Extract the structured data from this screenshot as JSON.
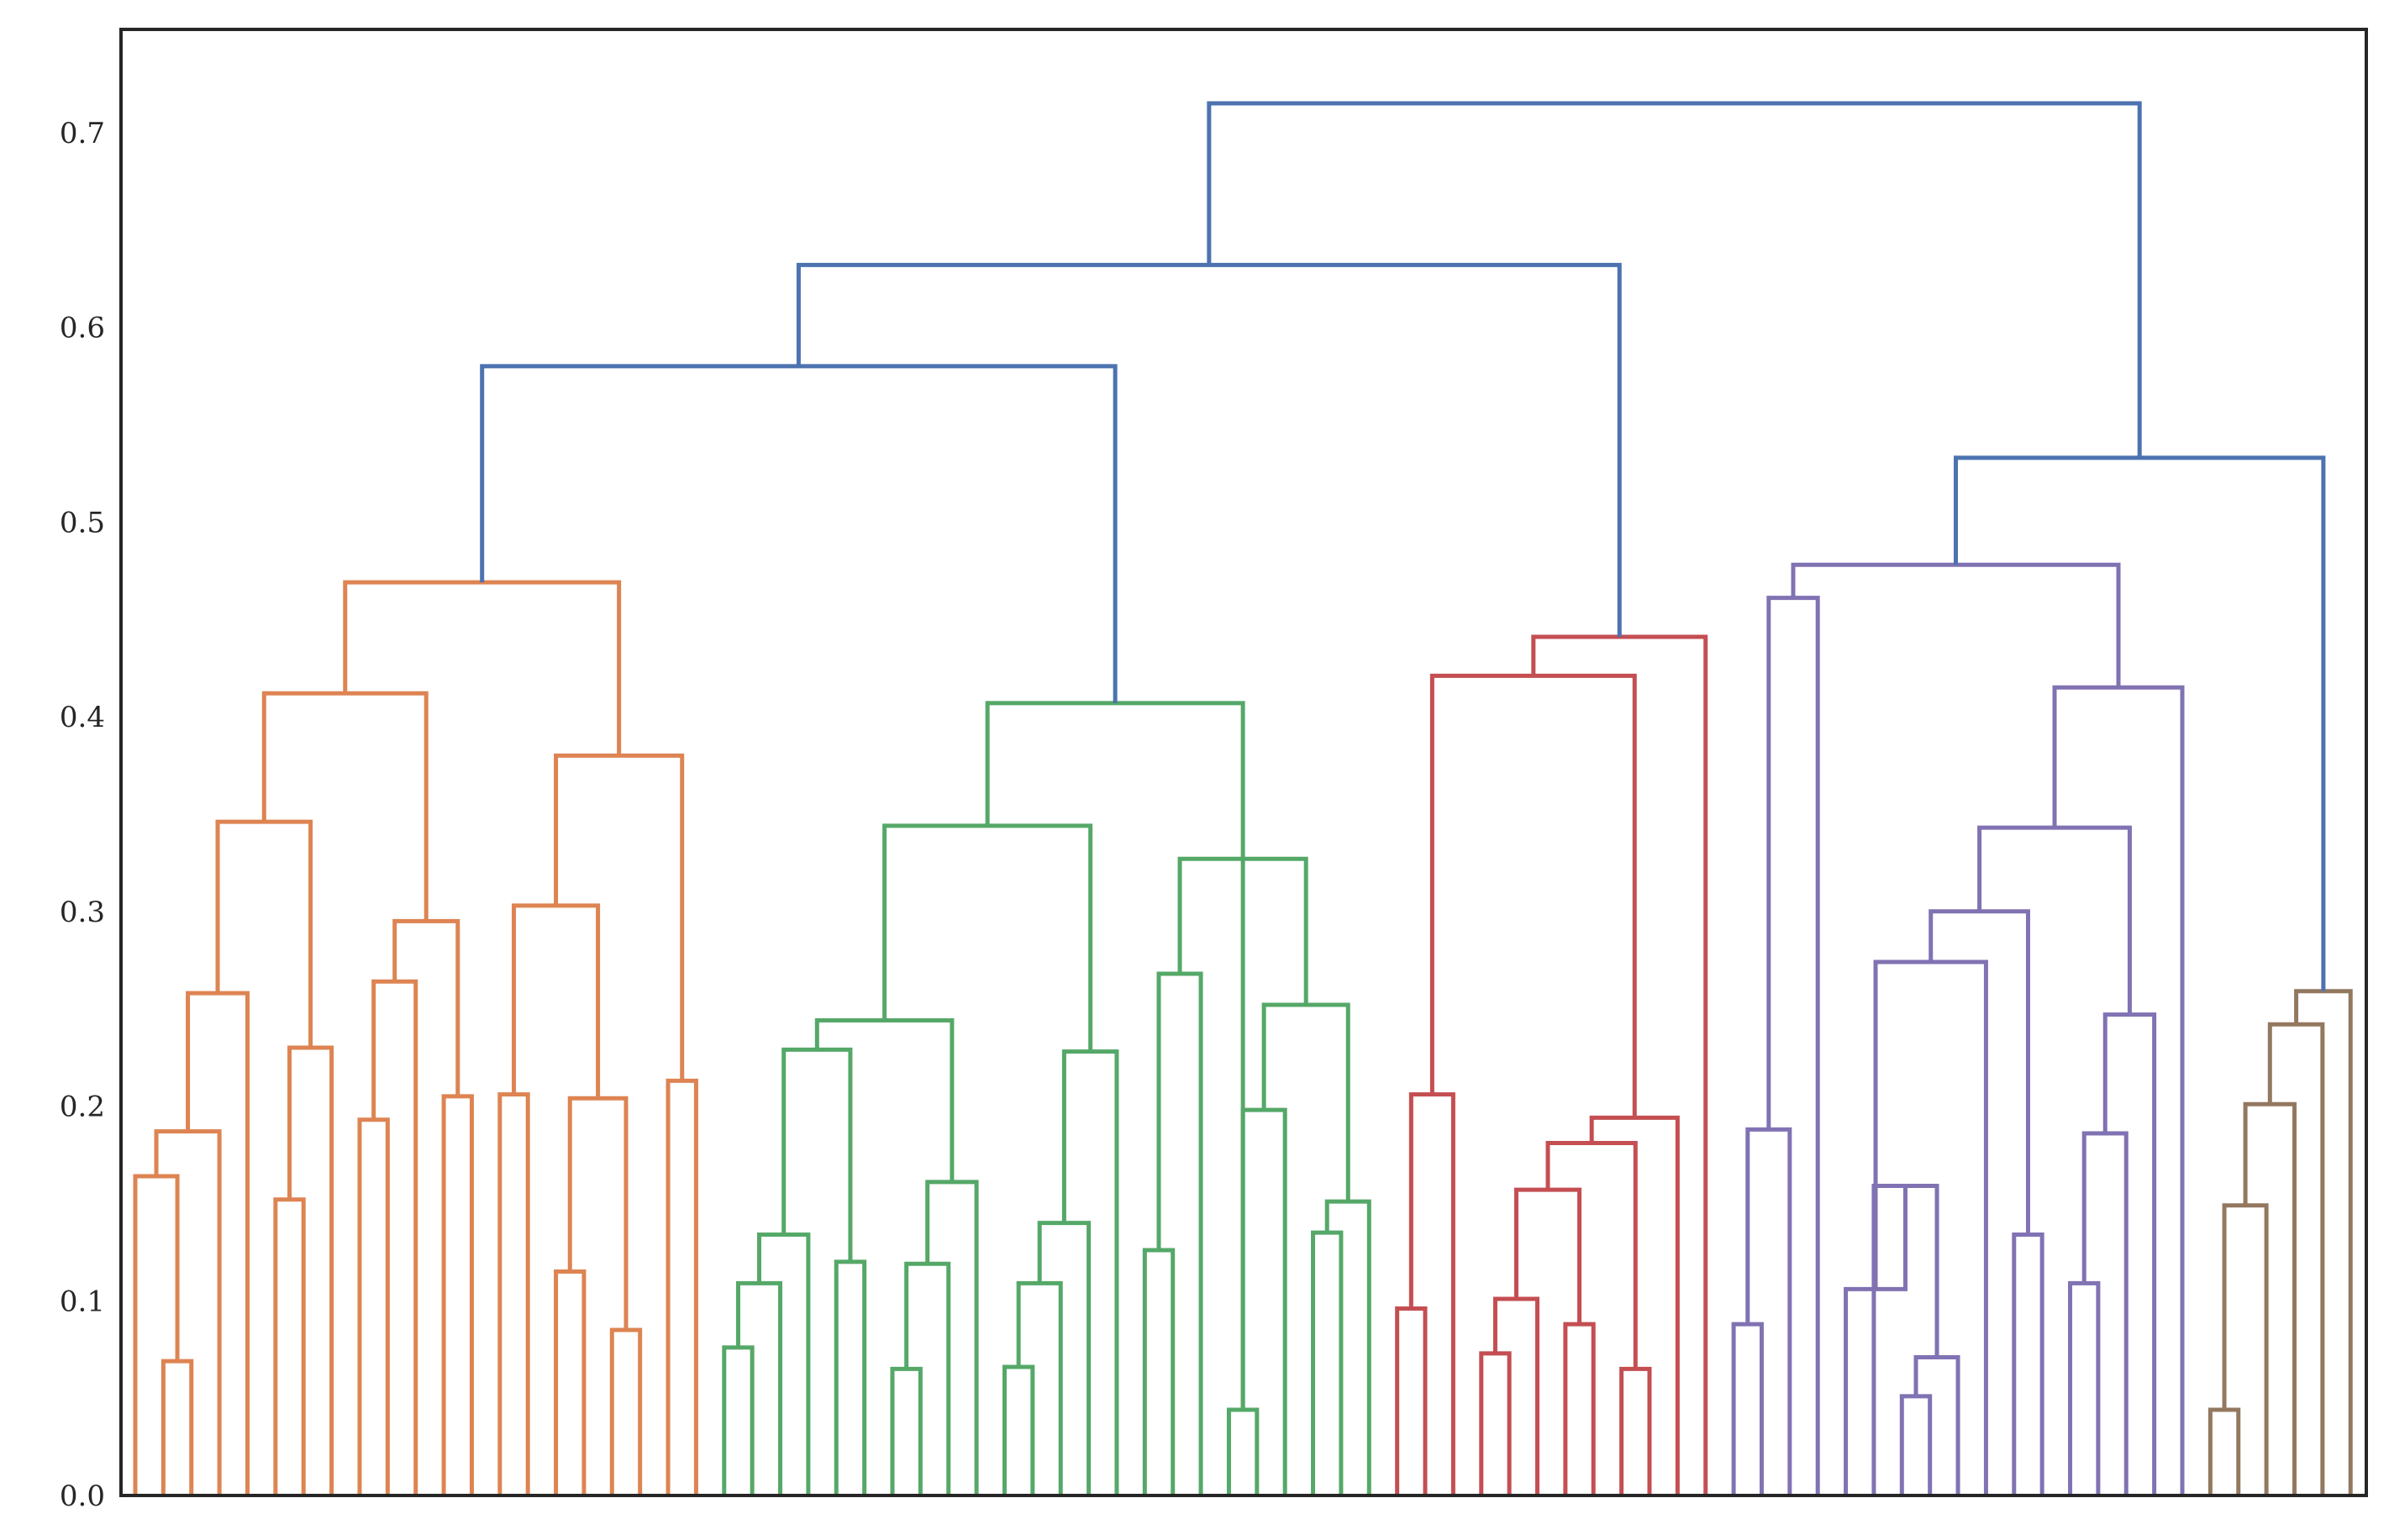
{
  "chart_data": {
    "type": "dendrogram",
    "title": "",
    "xlabel": "",
    "ylabel": "",
    "ylim": [
      0,
      0.753
    ],
    "grid": false,
    "y_ticks": [
      "0.0",
      "0.1",
      "0.2",
      "0.3",
      "0.4",
      "0.5",
      "0.6",
      "0.7"
    ],
    "y_tick_values": [
      0,
      0.1,
      0.2,
      0.3,
      0.4,
      0.5,
      0.6,
      0.7
    ],
    "leaf_count": 80,
    "colors": {
      "orange": "#dd8452",
      "green": "#55a868",
      "red": "#c44e52",
      "purple": "#8172b3",
      "brown": "#937860",
      "blue": "#4c72b0"
    },
    "links": [
      {
        "i": 1,
        "j": 2,
        "h": 0.069,
        "c": "orange"
      },
      {
        "i": 0,
        "j": 1.5,
        "h": 0.164,
        "c": "orange"
      },
      {
        "i": 0.75,
        "j": 3,
        "h": 0.187,
        "c": "orange"
      },
      {
        "i": 1.875,
        "j": 4,
        "h": 0.258,
        "c": "orange"
      },
      {
        "i": 5,
        "j": 6,
        "h": 0.152,
        "c": "orange"
      },
      {
        "i": 5.5,
        "j": 7,
        "h": 0.23,
        "c": "orange"
      },
      {
        "i": 2.9375,
        "j": 6.25,
        "h": 0.346,
        "c": "orange"
      },
      {
        "i": 8,
        "j": 9,
        "h": 0.193,
        "c": "orange"
      },
      {
        "i": 8.5,
        "j": 10,
        "h": 0.264,
        "c": "orange"
      },
      {
        "i": 11,
        "j": 12,
        "h": 0.205,
        "c": "orange"
      },
      {
        "i": 9.25,
        "j": 11.5,
        "h": 0.295,
        "c": "orange"
      },
      {
        "i": 4.59375,
        "j": 10.375,
        "h": 0.412,
        "c": "orange"
      },
      {
        "i": 15,
        "j": 16,
        "h": 0.115,
        "c": "orange"
      },
      {
        "i": 17,
        "j": 18,
        "h": 0.085,
        "c": "orange"
      },
      {
        "i": 15.5,
        "j": 17.5,
        "h": 0.204,
        "c": "orange"
      },
      {
        "i": 13,
        "j": 14,
        "h": 0.206,
        "c": "orange"
      },
      {
        "i": 13.5,
        "j": 16.5,
        "h": 0.303,
        "c": "orange"
      },
      {
        "i": 19,
        "j": 20,
        "h": 0.213,
        "c": "orange"
      },
      {
        "i": 15,
        "j": 19.5,
        "h": 0.38,
        "c": "orange"
      },
      {
        "i": 7.484375,
        "j": 17.25,
        "h": 0.469,
        "c": "orange"
      },
      {
        "i": 21,
        "j": 22,
        "h": 0.076,
        "c": "green"
      },
      {
        "i": 21.5,
        "j": 23,
        "h": 0.109,
        "c": "green"
      },
      {
        "i": 22.25,
        "j": 24,
        "h": 0.134,
        "c": "green"
      },
      {
        "i": 25,
        "j": 26,
        "h": 0.12,
        "c": "green"
      },
      {
        "i": 23.125,
        "j": 25.5,
        "h": 0.229,
        "c": "green"
      },
      {
        "i": 27,
        "j": 28,
        "h": 0.065,
        "c": "green"
      },
      {
        "i": 27.5,
        "j": 29,
        "h": 0.119,
        "c": "green"
      },
      {
        "i": 28.25,
        "j": 30,
        "h": 0.161,
        "c": "green"
      },
      {
        "i": 24.3125,
        "j": 29.125,
        "h": 0.244,
        "c": "green"
      },
      {
        "i": 31,
        "j": 32,
        "h": 0.066,
        "c": "green"
      },
      {
        "i": 31.5,
        "j": 33,
        "h": 0.109,
        "c": "green"
      },
      {
        "i": 32.25,
        "j": 34,
        "h": 0.14,
        "c": "green"
      },
      {
        "i": 33.125,
        "j": 35,
        "h": 0.228,
        "c": "green"
      },
      {
        "i": 26.71875,
        "j": 34.0625,
        "h": 0.344,
        "c": "green"
      },
      {
        "i": 36,
        "j": 37,
        "h": 0.126,
        "c": "green"
      },
      {
        "i": 36.5,
        "j": 38,
        "h": 0.268,
        "c": "green"
      },
      {
        "i": 39,
        "j": 40,
        "h": 0.044,
        "c": "green"
      },
      {
        "i": 39.5,
        "j": 41,
        "h": 0.198,
        "c": "green"
      },
      {
        "i": 42,
        "j": 43,
        "h": 0.135,
        "c": "green"
      },
      {
        "i": 42.5,
        "j": 44,
        "h": 0.151,
        "c": "green"
      },
      {
        "i": 40.25,
        "j": 43.25,
        "h": 0.252,
        "c": "green"
      },
      {
        "i": 37.25,
        "j": 41.75,
        "h": 0.327,
        "c": "green"
      },
      {
        "i": 30.390625,
        "j": 39.5,
        "h": 0.407,
        "c": "green"
      },
      {
        "i": 45,
        "j": 46,
        "h": 0.096,
        "c": "red"
      },
      {
        "i": 45.5,
        "j": 47,
        "h": 0.206,
        "c": "red"
      },
      {
        "i": 48,
        "j": 49,
        "h": 0.073,
        "c": "red"
      },
      {
        "i": 48.5,
        "j": 50,
        "h": 0.101,
        "c": "red"
      },
      {
        "i": 51,
        "j": 52,
        "h": 0.088,
        "c": "red"
      },
      {
        "i": 49.25,
        "j": 51.5,
        "h": 0.157,
        "c": "red"
      },
      {
        "i": 53,
        "j": 54,
        "h": 0.065,
        "c": "red"
      },
      {
        "i": 50.375,
        "j": 53.5,
        "h": 0.181,
        "c": "red"
      },
      {
        "i": 51.9375,
        "j": 55,
        "h": 0.194,
        "c": "red"
      },
      {
        "i": 46.25,
        "j": 53.46875,
        "h": 0.421,
        "c": "red"
      },
      {
        "i": 49.859375,
        "j": 56,
        "h": 0.441,
        "c": "red"
      },
      {
        "i": 57,
        "j": 58,
        "h": 0.088,
        "c": "purple"
      },
      {
        "i": 57.5,
        "j": 59,
        "h": 0.188,
        "c": "purple"
      },
      {
        "i": 58.25,
        "j": 60,
        "h": 0.461,
        "c": "purple"
      },
      {
        "i": 63,
        "j": 64,
        "h": 0.051,
        "c": "purple"
      },
      {
        "i": 63.5,
        "j": 65,
        "h": 0.071,
        "c": "purple"
      },
      {
        "i": 62,
        "j": 64.25,
        "h": 0.159,
        "c": "purple"
      },
      {
        "i": 61,
        "j": 63.125,
        "h": 0.106,
        "c": "purple"
      },
      {
        "i": 62.0625,
        "j": 66,
        "h": 0.274,
        "c": "purple"
      },
      {
        "i": 67,
        "j": 68,
        "h": 0.134,
        "c": "purple"
      },
      {
        "i": 64.03125,
        "j": 67.5,
        "h": 0.3,
        "c": "purple"
      },
      {
        "i": 69,
        "j": 70,
        "h": 0.109,
        "c": "purple"
      },
      {
        "i": 69.5,
        "j": 71,
        "h": 0.186,
        "c": "purple"
      },
      {
        "i": 70.25,
        "j": 72,
        "h": 0.247,
        "c": "purple"
      },
      {
        "i": 65.765625,
        "j": 71.125,
        "h": 0.343,
        "c": "purple"
      },
      {
        "i": 68.4453125,
        "j": 73,
        "h": 0.415,
        "c": "purple"
      },
      {
        "i": 59.125,
        "j": 70.72265625,
        "h": 0.478,
        "c": "purple"
      },
      {
        "i": 74,
        "j": 75,
        "h": 0.044,
        "c": "brown"
      },
      {
        "i": 74.5,
        "j": 76,
        "h": 0.149,
        "c": "brown"
      },
      {
        "i": 75.25,
        "j": 77,
        "h": 0.201,
        "c": "brown"
      },
      {
        "i": 76.125,
        "j": 78,
        "h": 0.242,
        "c": "brown"
      },
      {
        "i": 77.0625,
        "j": 79,
        "h": 0.259,
        "c": "brown"
      },
      {
        "i": 64.923828125,
        "j": 78.03125,
        "h": 0.533,
        "c": "blue"
      },
      {
        "i": 12.3671875,
        "j": 34.9453125,
        "h": 0.58,
        "c": "blue"
      },
      {
        "i": 23.65625,
        "j": 52.9296875,
        "h": 0.632,
        "c": "blue"
      },
      {
        "i": 38.29296875,
        "j": 71.4775390625,
        "h": 0.715,
        "c": "blue"
      }
    ]
  }
}
